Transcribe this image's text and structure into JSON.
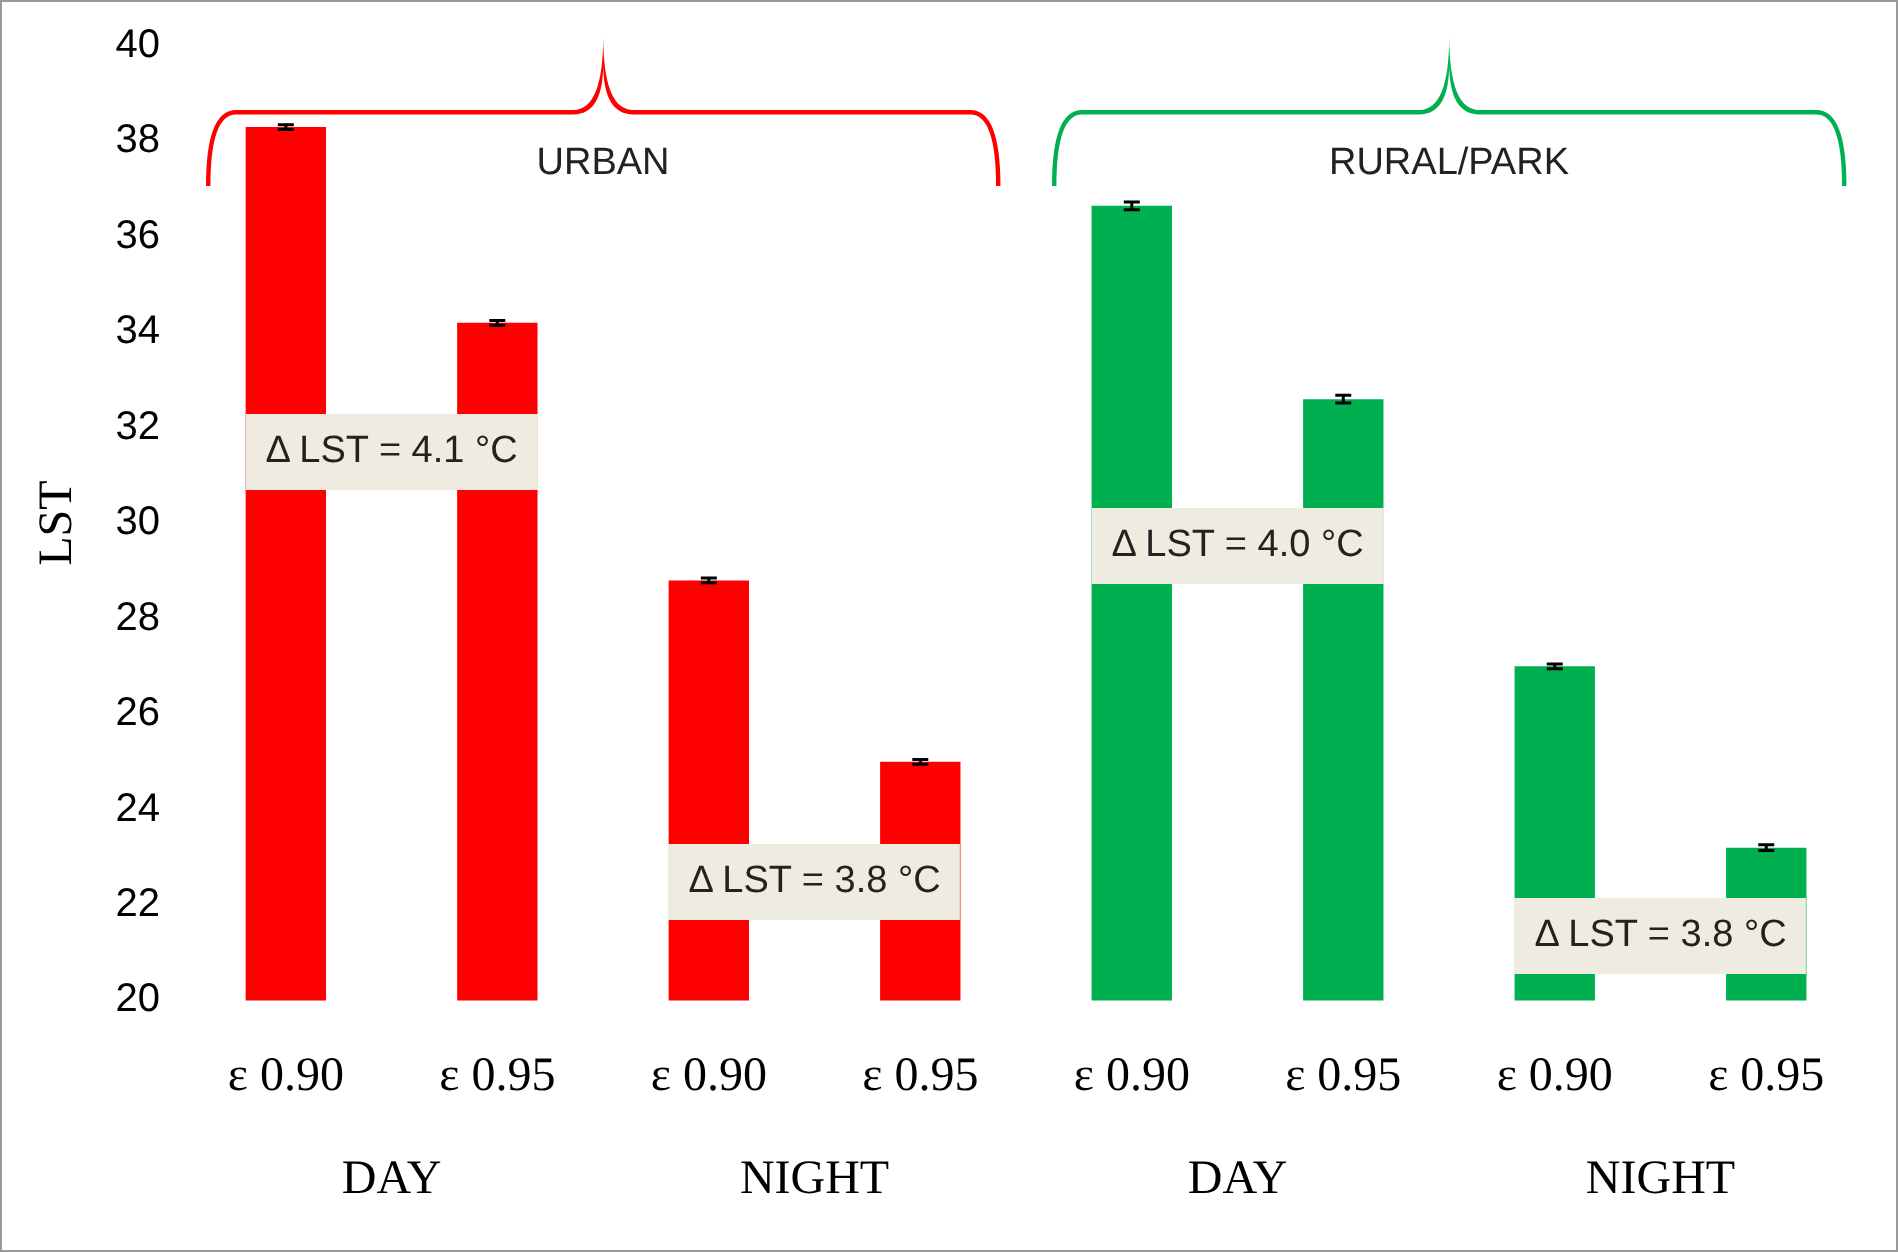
{
  "chart_data": {
    "type": "bar",
    "ylabel": "LST",
    "categories": [
      "ε 0.90",
      "ε 0.95",
      "ε 0.90",
      "ε 0.95",
      "ε 0.90",
      "ε 0.95",
      "ε 0.90",
      "ε 0.95"
    ],
    "values": [
      38.3,
      34.2,
      28.8,
      25.0,
      36.65,
      32.6,
      27.0,
      23.2
    ],
    "errors": [
      0.05,
      0.05,
      0.05,
      0.05,
      0.08,
      0.08,
      0.05,
      0.06
    ],
    "colors": [
      "#ff0000",
      "#ff0000",
      "#ff0000",
      "#ff0000",
      "#00b050",
      "#00b050",
      "#00b050",
      "#00b050"
    ],
    "ylim": [
      20,
      40
    ],
    "yticks": [
      20,
      22,
      24,
      26,
      28,
      30,
      32,
      34,
      36,
      38,
      40
    ],
    "grid": false,
    "legend": false,
    "annotations": [
      "DAY",
      "NIGHT",
      "DAY",
      "NIGHT",
      "URBAN",
      "RURAL/PARK",
      "Δ LST = 4.1 °C",
      "Δ LST = 3.8 °C",
      "Δ LST = 4.0 °C",
      "Δ LST = 3.8 °C"
    ]
  }
}
